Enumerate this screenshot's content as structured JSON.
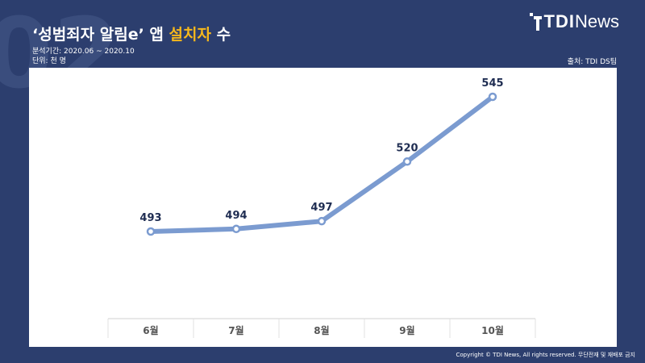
{
  "page": {
    "bg_number": "02"
  },
  "header": {
    "title_part1": "‘성범죄자 알림e’ 앱 ",
    "title_highlight": "설치자",
    "title_part2": " 수",
    "period": "분석기간: 2020.06 ~ 2020.10",
    "unit": "단위: 천 명",
    "source": "출처: TDI DS팀"
  },
  "logo": {
    "tdi": "TDI",
    "news": "News"
  },
  "footer": {
    "copyright": "Copyright © TDI News, All rights reserved. 무단전재 및 재배포 금지"
  },
  "colors": {
    "background": "#2c3e6e",
    "highlight": "#f6b81c",
    "line": "#7b9bd0",
    "label": "#1f2d52"
  },
  "chart_data": {
    "type": "line",
    "categories": [
      "6월",
      "7월",
      "8월",
      "9월",
      "10월"
    ],
    "values": [
      493,
      494,
      497,
      520,
      545
    ],
    "data_labels": true,
    "grid": false,
    "legend": "none"
  }
}
